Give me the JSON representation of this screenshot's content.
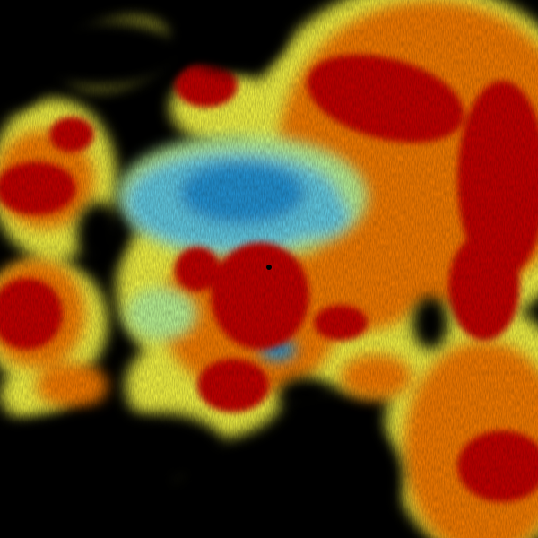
{
  "image": {
    "kind": "weather-radar-polar-product",
    "palette": {
      "background": "#000000",
      "deep_red": "#c00000",
      "red": "#d82000",
      "orange": "#f07800",
      "yellow": "#f0f040",
      "light_green": "#b8f090",
      "cyan": "#60c8e0",
      "blue": "#2090d0",
      "dark_blue": "#0050b0"
    }
  }
}
